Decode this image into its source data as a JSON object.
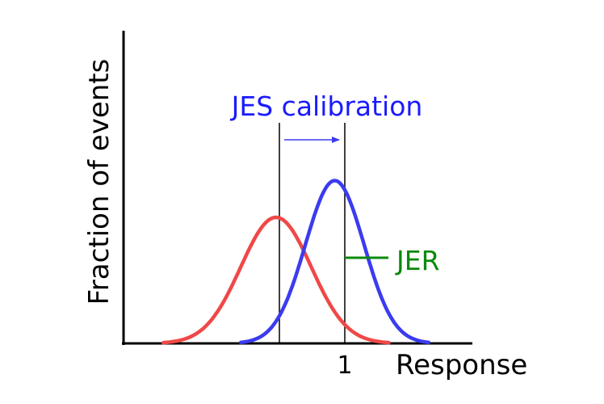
{
  "diagram": {
    "ylabel": "Fraction of events",
    "xlabel": "Response",
    "x_tick_label": "1",
    "calibration_label": "JES calibration",
    "resolution_label": "JER",
    "colors": {
      "uncalibrated": "#f04848",
      "calibrated": "#3b3bf0",
      "calibration_text": "#1a1aff",
      "resolution": "#0a8a0a",
      "axis": "#000000"
    },
    "curves": [
      {
        "role": "before-calibration",
        "color": "#f04848",
        "mean": 0.8,
        "sigma": 0.12,
        "peak": 0.48
      },
      {
        "role": "after-calibration",
        "color": "#3b3bf0",
        "mean": 1.0,
        "sigma": 0.1,
        "peak": 0.62
      }
    ],
    "x_range": [
      0.3,
      1.4
    ],
    "y_range": [
      0,
      1.0
    ]
  }
}
